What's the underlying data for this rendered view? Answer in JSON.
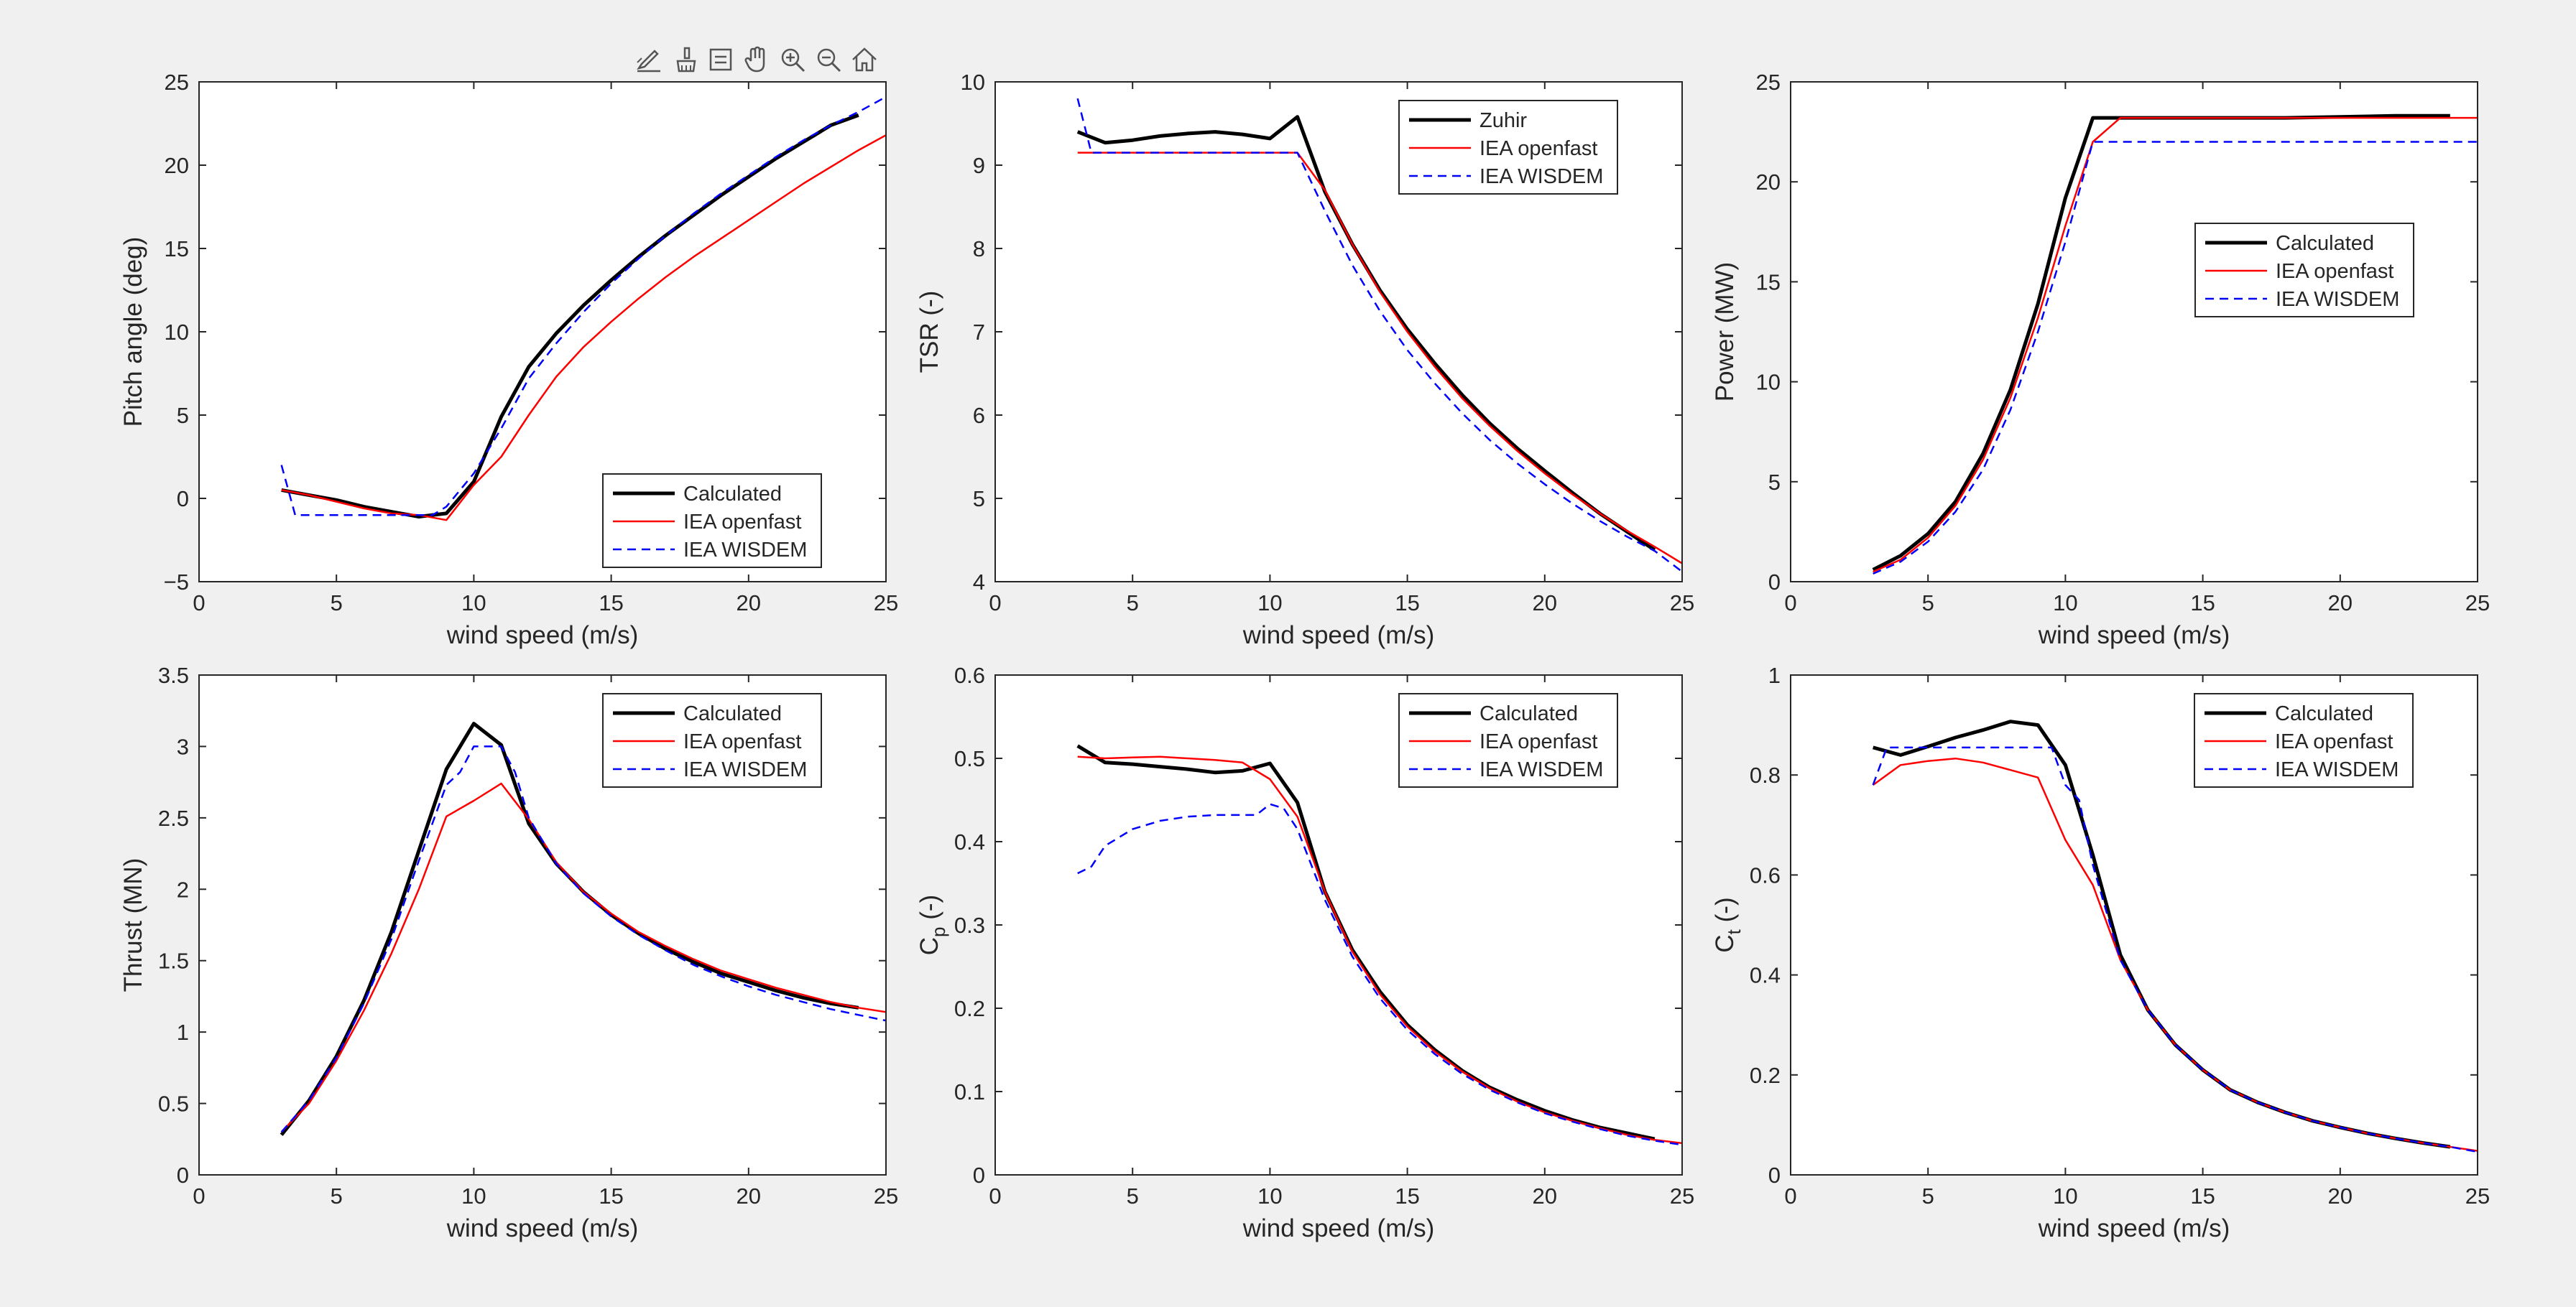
{
  "toolbar": {
    "icons": [
      "data-tips-icon",
      "brush-icon",
      "insert-legend-icon",
      "pan-hand-icon",
      "zoom-in-icon",
      "zoom-out-icon",
      "restore-view-home-icon"
    ]
  },
  "colors": {
    "calculated": "#000000",
    "openfast": "#ff0000",
    "wisdem": "#0000ff",
    "background": "#f0f0f0"
  },
  "chart_data": [
    {
      "type": "line",
      "ylabel": "Pitch angle (deg)",
      "xlabel": "wind speed (m/s)",
      "xlim": [
        0,
        25
      ],
      "ylim": [
        -5,
        25
      ],
      "xticks": [
        0,
        5,
        10,
        15,
        20,
        25
      ],
      "yticks": [
        -5,
        0,
        5,
        10,
        15,
        20,
        25
      ],
      "legend_position": "bottom-right",
      "series": [
        {
          "name": "Calculated",
          "style": "calc",
          "x": [
            3,
            4,
            5,
            6,
            7,
            8,
            9,
            10,
            11,
            12,
            13,
            14,
            15,
            16,
            17,
            18,
            19,
            20,
            21,
            22,
            23,
            24
          ],
          "y": [
            0.5,
            0.2,
            -0.1,
            -0.5,
            -0.8,
            -1.1,
            -0.9,
            1.0,
            4.9,
            7.9,
            9.9,
            11.6,
            13.1,
            14.5,
            15.8,
            17.0,
            18.2,
            19.3,
            20.4,
            21.4,
            22.4,
            23.0
          ]
        },
        {
          "name": "IEA openfast",
          "style": "openfast",
          "x": [
            3,
            4,
            5,
            6,
            7,
            8,
            9,
            10,
            11,
            12,
            13,
            14,
            15,
            16,
            17,
            18,
            19,
            20,
            21,
            22,
            23,
            24,
            25
          ],
          "y": [
            0.5,
            0.2,
            -0.2,
            -0.6,
            -0.9,
            -1.0,
            -1.3,
            0.8,
            2.5,
            5.0,
            7.3,
            9.1,
            10.6,
            12.0,
            13.3,
            14.5,
            15.6,
            16.7,
            17.8,
            18.9,
            19.9,
            20.9,
            21.8
          ]
        },
        {
          "name": "IEA WISDEM",
          "style": "wisdem",
          "x": [
            3,
            3.5,
            4,
            5,
            6,
            7,
            8,
            8.5,
            9,
            10,
            11,
            12,
            13,
            14,
            15,
            16,
            17,
            18,
            19,
            20,
            21,
            22,
            23,
            24,
            25
          ],
          "y": [
            2.0,
            -1.0,
            -1.0,
            -1.0,
            -1.0,
            -1.0,
            -1.0,
            -1.0,
            -0.5,
            1.5,
            4.2,
            7.2,
            9.3,
            11.2,
            12.9,
            14.4,
            15.8,
            17.1,
            18.3,
            19.4,
            20.5,
            21.5,
            22.4,
            23.2,
            24.1
          ]
        }
      ]
    },
    {
      "type": "line",
      "ylabel": "TSR (-)",
      "xlabel": "wind speed (m/s)",
      "xlim": [
        0,
        25
      ],
      "ylim": [
        4,
        10
      ],
      "xticks": [
        0,
        5,
        10,
        15,
        20,
        25
      ],
      "yticks": [
        4,
        5,
        6,
        7,
        8,
        9,
        10
      ],
      "legend_position": "top-right",
      "series": [
        {
          "name": "Zuhir",
          "style": "calc",
          "x": [
            3,
            4,
            5,
            6,
            7,
            8,
            9,
            10,
            11,
            12,
            13,
            14,
            15,
            16,
            17,
            18,
            19,
            20,
            21,
            22,
            23,
            24
          ],
          "y": [
            9.4,
            9.27,
            9.3,
            9.35,
            9.38,
            9.4,
            9.37,
            9.32,
            9.58,
            8.68,
            8.05,
            7.5,
            7.03,
            6.62,
            6.24,
            5.9,
            5.6,
            5.33,
            5.07,
            4.82,
            4.6,
            4.38
          ]
        },
        {
          "name": "IEA openfast",
          "style": "openfast",
          "x": [
            3,
            4,
            5,
            6,
            7,
            8,
            9,
            10,
            11,
            12,
            13,
            14,
            15,
            16,
            17,
            18,
            19,
            20,
            21,
            22,
            23,
            24,
            25
          ],
          "y": [
            9.15,
            9.15,
            9.15,
            9.15,
            9.15,
            9.15,
            9.15,
            9.15,
            9.15,
            8.7,
            8.05,
            7.48,
            7.0,
            6.58,
            6.2,
            5.87,
            5.57,
            5.3,
            5.05,
            4.82,
            4.61,
            4.42,
            4.22
          ]
        },
        {
          "name": "IEA WISDEM",
          "style": "wisdem",
          "x": [
            3,
            3.5,
            4,
            5,
            6,
            7,
            8,
            9,
            10,
            11,
            12,
            13,
            14,
            15,
            16,
            17,
            18,
            19,
            20,
            21,
            22,
            23,
            24,
            25
          ],
          "y": [
            9.8,
            9.15,
            9.15,
            9.15,
            9.15,
            9.15,
            9.15,
            9.15,
            9.15,
            9.15,
            8.45,
            7.8,
            7.25,
            6.78,
            6.38,
            6.02,
            5.7,
            5.42,
            5.17,
            4.94,
            4.73,
            4.54,
            4.37,
            4.12
          ]
        }
      ]
    },
    {
      "type": "line",
      "ylabel": "Power (MW)",
      "xlabel": "wind speed (m/s)",
      "xlim": [
        0,
        25
      ],
      "ylim": [
        0,
        25
      ],
      "xticks": [
        0,
        5,
        10,
        15,
        20,
        25
      ],
      "yticks": [
        0,
        5,
        10,
        15,
        20,
        25
      ],
      "legend_position": "center-right",
      "series": [
        {
          "name": "Calculated",
          "style": "calc",
          "x": [
            3,
            4,
            5,
            6,
            7,
            8,
            9,
            10,
            11,
            12,
            14,
            16,
            18,
            20,
            22,
            24
          ],
          "y": [
            0.6,
            1.3,
            2.4,
            4.0,
            6.4,
            9.6,
            13.9,
            19.2,
            23.2,
            23.2,
            23.2,
            23.2,
            23.2,
            23.25,
            23.3,
            23.3
          ]
        },
        {
          "name": "IEA openfast",
          "style": "openfast",
          "x": [
            3,
            4,
            5,
            6,
            7,
            8,
            9,
            10,
            11,
            12,
            14,
            16,
            18,
            20,
            22,
            24,
            25
          ],
          "y": [
            0.5,
            1.1,
            2.2,
            3.8,
            6.1,
            9.2,
            13.2,
            17.8,
            22.0,
            23.2,
            23.2,
            23.2,
            23.2,
            23.2,
            23.2,
            23.2,
            23.2
          ]
        },
        {
          "name": "IEA WISDEM",
          "style": "wisdem",
          "x": [
            3,
            4,
            5,
            6,
            7,
            8,
            9,
            10,
            11,
            12,
            14,
            16,
            18,
            20,
            22,
            24,
            25
          ],
          "y": [
            0.4,
            1.0,
            2.0,
            3.5,
            5.6,
            8.6,
            12.5,
            17.0,
            22.0,
            22.0,
            22.0,
            22.0,
            22.0,
            22.0,
            22.0,
            22.0,
            22.0
          ]
        }
      ]
    },
    {
      "type": "line",
      "ylabel": "Thrust (MN)",
      "xlabel": "wind speed (m/s)",
      "xlim": [
        0,
        25
      ],
      "ylim": [
        0,
        3.5
      ],
      "xticks": [
        0,
        5,
        10,
        15,
        20,
        25
      ],
      "yticks": [
        0,
        0.5,
        1,
        1.5,
        2,
        2.5,
        3,
        3.5
      ],
      "legend_position": "top-right",
      "series": [
        {
          "name": "Calculated",
          "style": "calc",
          "x": [
            3,
            4,
            5,
            6,
            7,
            8,
            9,
            10,
            11,
            12,
            13,
            14,
            15,
            16,
            17,
            18,
            19,
            20,
            21,
            22,
            23,
            24
          ],
          "y": [
            0.28,
            0.52,
            0.83,
            1.22,
            1.7,
            2.27,
            2.84,
            3.16,
            3.01,
            2.46,
            2.18,
            1.98,
            1.82,
            1.69,
            1.58,
            1.49,
            1.41,
            1.35,
            1.29,
            1.24,
            1.2,
            1.17
          ]
        },
        {
          "name": "IEA openfast",
          "style": "openfast",
          "x": [
            3,
            4,
            5,
            6,
            7,
            8,
            9,
            10,
            11,
            12,
            13,
            14,
            15,
            16,
            17,
            18,
            19,
            20,
            21,
            22,
            23,
            24,
            25
          ],
          "y": [
            0.3,
            0.5,
            0.8,
            1.15,
            1.55,
            2.0,
            2.51,
            2.62,
            2.74,
            2.49,
            2.19,
            1.98,
            1.83,
            1.7,
            1.6,
            1.51,
            1.43,
            1.37,
            1.31,
            1.26,
            1.21,
            1.17,
            1.14
          ]
        },
        {
          "name": "IEA WISDEM",
          "style": "wisdem",
          "x": [
            3,
            4,
            5,
            6,
            7,
            8,
            9,
            9.5,
            10,
            11,
            11.5,
            12,
            13,
            14,
            15,
            16,
            17,
            18,
            19,
            20,
            21,
            22,
            23,
            24,
            25
          ],
          "y": [
            0.3,
            0.52,
            0.82,
            1.2,
            1.65,
            2.2,
            2.73,
            2.82,
            3.0,
            3.0,
            2.82,
            2.5,
            2.18,
            1.97,
            1.81,
            1.68,
            1.57,
            1.47,
            1.39,
            1.32,
            1.26,
            1.21,
            1.16,
            1.12,
            1.08
          ]
        }
      ]
    },
    {
      "type": "line",
      "ylabel_main": "C",
      "ylabel_sub": "p",
      "ylabel_suffix": " (-)",
      "xlabel": "wind speed (m/s)",
      "xlim": [
        0,
        25
      ],
      "ylim": [
        0,
        0.6
      ],
      "xticks": [
        0,
        5,
        10,
        15,
        20,
        25
      ],
      "yticks": [
        0,
        0.1,
        0.2,
        0.3,
        0.4,
        0.5,
        0.6
      ],
      "legend_position": "top-right",
      "series": [
        {
          "name": "Calculated",
          "style": "calc",
          "x": [
            3,
            4,
            5,
            6,
            7,
            8,
            9,
            10,
            11,
            12,
            13,
            14,
            15,
            16,
            17,
            18,
            19,
            20,
            21,
            22,
            23,
            24
          ],
          "y": [
            0.515,
            0.495,
            0.493,
            0.49,
            0.487,
            0.483,
            0.485,
            0.494,
            0.447,
            0.34,
            0.27,
            0.22,
            0.18,
            0.15,
            0.125,
            0.105,
            0.09,
            0.077,
            0.066,
            0.057,
            0.05,
            0.043
          ]
        },
        {
          "name": "IEA openfast",
          "style": "openfast",
          "x": [
            3,
            4,
            5,
            6,
            7,
            8,
            9,
            10,
            11,
            12,
            13,
            14,
            15,
            16,
            17,
            18,
            19,
            20,
            21,
            22,
            23,
            24,
            25
          ],
          "y": [
            0.502,
            0.5,
            0.501,
            0.502,
            0.5,
            0.498,
            0.495,
            0.475,
            0.43,
            0.34,
            0.268,
            0.217,
            0.178,
            0.148,
            0.124,
            0.104,
            0.088,
            0.075,
            0.065,
            0.056,
            0.048,
            0.042,
            0.038
          ]
        },
        {
          "name": "IEA WISDEM",
          "style": "wisdem",
          "x": [
            3,
            3.5,
            4,
            5,
            6,
            7,
            8,
            9,
            9.5,
            10,
            10.5,
            11,
            12,
            13,
            14,
            15,
            16,
            17,
            18,
            19,
            20,
            21,
            22,
            23,
            24,
            25
          ],
          "y": [
            0.362,
            0.37,
            0.395,
            0.415,
            0.425,
            0.43,
            0.432,
            0.432,
            0.432,
            0.445,
            0.44,
            0.415,
            0.33,
            0.262,
            0.212,
            0.174,
            0.145,
            0.121,
            0.102,
            0.087,
            0.074,
            0.064,
            0.055,
            0.047,
            0.041,
            0.036
          ]
        }
      ]
    },
    {
      "type": "line",
      "ylabel_main": "C",
      "ylabel_sub": "t",
      "ylabel_suffix": " (-)",
      "xlabel": "wind speed (m/s)",
      "xlim": [
        0,
        25
      ],
      "ylim": [
        0,
        1
      ],
      "xticks": [
        0,
        5,
        10,
        15,
        20,
        25
      ],
      "yticks": [
        0,
        0.2,
        0.4,
        0.6,
        0.8,
        1
      ],
      "legend_position": "top-right",
      "series": [
        {
          "name": "Calculated",
          "style": "calc",
          "x": [
            3,
            4,
            5,
            6,
            7,
            8,
            9,
            10,
            11,
            12,
            13,
            14,
            15,
            16,
            17,
            18,
            19,
            20,
            21,
            22,
            23,
            24
          ],
          "y": [
            0.855,
            0.84,
            0.857,
            0.875,
            0.89,
            0.907,
            0.9,
            0.82,
            0.64,
            0.44,
            0.33,
            0.26,
            0.21,
            0.17,
            0.145,
            0.125,
            0.108,
            0.095,
            0.083,
            0.073,
            0.064,
            0.056
          ]
        },
        {
          "name": "IEA openfast",
          "style": "openfast",
          "x": [
            3,
            4,
            5,
            6,
            7,
            8,
            9,
            10,
            11,
            12,
            13,
            14,
            15,
            16,
            17,
            18,
            19,
            20,
            21,
            22,
            23,
            24,
            25
          ],
          "y": [
            0.78,
            0.82,
            0.828,
            0.833,
            0.825,
            0.81,
            0.795,
            0.67,
            0.58,
            0.43,
            0.33,
            0.26,
            0.21,
            0.17,
            0.145,
            0.125,
            0.108,
            0.095,
            0.083,
            0.073,
            0.064,
            0.056,
            0.048
          ]
        },
        {
          "name": "IEA WISDEM",
          "style": "wisdem",
          "x": [
            3,
            3.5,
            4,
            5,
            6,
            7,
            8,
            9,
            9.5,
            10,
            10.5,
            11,
            12,
            13,
            14,
            15,
            16,
            17,
            18,
            19,
            20,
            21,
            22,
            23,
            24,
            25
          ],
          "y": [
            0.78,
            0.855,
            0.855,
            0.855,
            0.855,
            0.855,
            0.855,
            0.855,
            0.855,
            0.78,
            0.75,
            0.62,
            0.43,
            0.33,
            0.26,
            0.21,
            0.17,
            0.145,
            0.125,
            0.108,
            0.095,
            0.083,
            0.073,
            0.064,
            0.056,
            0.046
          ]
        }
      ]
    }
  ]
}
